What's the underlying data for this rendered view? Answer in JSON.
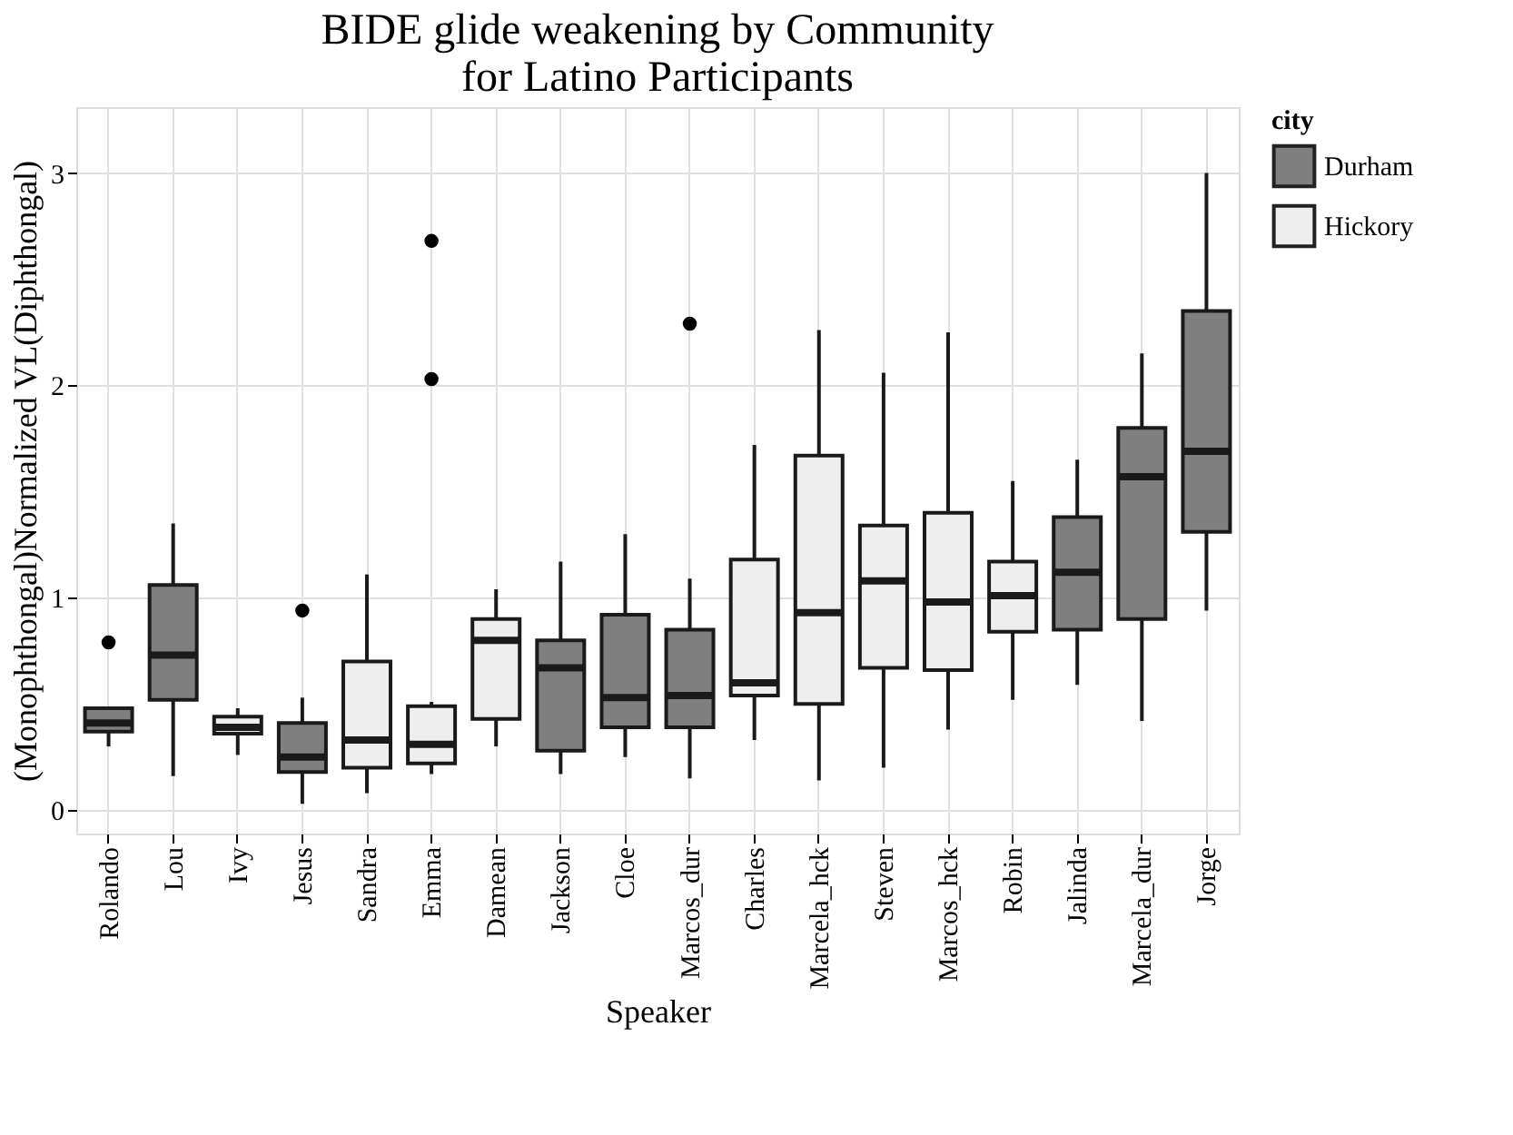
{
  "chart_data": {
    "type": "box",
    "title": "BIDE glide weakening by Community\nfor Latino Participants",
    "xlabel": "Speaker",
    "ylabel": "(Monophthongal)Normalized VL(Diphthongal)",
    "legend_title": "city",
    "legend": "right",
    "grid": true,
    "categories": [
      "Rolando",
      "Lou",
      "Ivy",
      "Jesus",
      "Sandra",
      "Emma",
      "Damean",
      "Jackson",
      "Cloe",
      "Marcos_dur",
      "Charles",
      "Marcela_hck",
      "Steven",
      "Marcos_hck",
      "Robin",
      "Jalinda",
      "Marcela_dur",
      "Jorge"
    ],
    "ylim": [
      -0.11,
      3.31
    ],
    "yticks": [
      0,
      1,
      2,
      3
    ],
    "series": [
      {
        "name": "Durham",
        "color": "#7f7f7f",
        "boxes": [
          {
            "low": 0.3,
            "q1": 0.37,
            "median": 0.41,
            "q3": 0.48,
            "high": 0.48,
            "outliers": [
              0.79
            ]
          },
          {
            "low": 0.16,
            "q1": 0.52,
            "median": 0.73,
            "q3": 1.06,
            "high": 1.35
          },
          null,
          {
            "low": 0.03,
            "q1": 0.18,
            "median": 0.25,
            "q3": 0.41,
            "high": 0.53,
            "outliers": [
              0.94
            ]
          },
          null,
          null,
          null,
          {
            "low": 0.17,
            "q1": 0.28,
            "median": 0.67,
            "q3": 0.8,
            "high": 1.17
          },
          {
            "low": 0.25,
            "q1": 0.39,
            "median": 0.53,
            "q3": 0.92,
            "high": 1.3
          },
          {
            "low": 0.15,
            "q1": 0.39,
            "median": 0.54,
            "q3": 0.85,
            "high": 1.09,
            "outliers": [
              2.29
            ]
          },
          null,
          null,
          null,
          null,
          null,
          {
            "low": 0.59,
            "q1": 0.85,
            "median": 1.12,
            "q3": 1.38,
            "high": 1.65
          },
          {
            "low": 0.42,
            "q1": 0.9,
            "median": 1.57,
            "q3": 1.8,
            "high": 2.15
          },
          {
            "low": 0.94,
            "q1": 1.31,
            "median": 1.69,
            "q3": 2.35,
            "high": 3.0
          }
        ]
      },
      {
        "name": "Hickory",
        "color": "#eeeeee",
        "boxes": [
          null,
          null,
          {
            "low": 0.26,
            "q1": 0.36,
            "median": 0.39,
            "q3": 0.44,
            "high": 0.48
          },
          null,
          {
            "low": 0.08,
            "q1": 0.2,
            "median": 0.33,
            "q3": 0.7,
            "high": 1.11
          },
          {
            "low": 0.17,
            "q1": 0.22,
            "median": 0.31,
            "q3": 0.49,
            "high": 0.51,
            "outliers": [
              2.03,
              2.68
            ]
          },
          {
            "low": 0.3,
            "q1": 0.43,
            "median": 0.8,
            "q3": 0.9,
            "high": 1.04
          },
          null,
          null,
          null,
          {
            "low": 0.33,
            "q1": 0.54,
            "median": 0.6,
            "q3": 1.18,
            "high": 1.72
          },
          {
            "low": 0.14,
            "q1": 0.5,
            "median": 0.93,
            "q3": 1.67,
            "high": 2.26
          },
          {
            "low": 0.2,
            "q1": 0.67,
            "median": 1.08,
            "q3": 1.34,
            "high": 2.06
          },
          {
            "low": 0.38,
            "q1": 0.66,
            "median": 0.98,
            "q3": 1.4,
            "high": 2.25
          },
          {
            "low": 0.52,
            "q1": 0.84,
            "median": 1.01,
            "q3": 1.17,
            "high": 1.55
          },
          null,
          null,
          null
        ]
      }
    ]
  }
}
